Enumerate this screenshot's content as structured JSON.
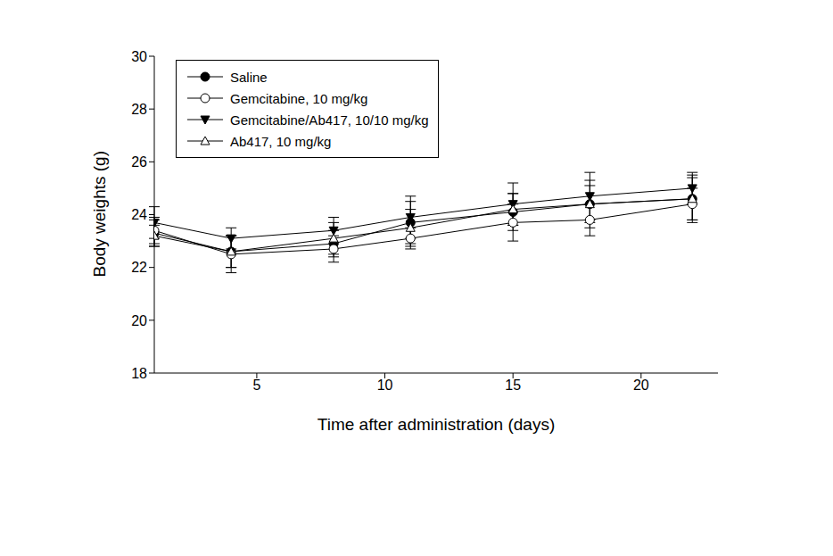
{
  "chart_data": {
    "type": "line",
    "xlabel": "Time after administration (days)",
    "ylabel": "Body weights (g)",
    "x": [
      1,
      4,
      8,
      11,
      15,
      18,
      22
    ],
    "xlim": [
      1,
      23
    ],
    "xticks": [
      5,
      10,
      15,
      20
    ],
    "ylim": [
      18,
      30
    ],
    "yticks": [
      18,
      20,
      22,
      24,
      26,
      28,
      30
    ],
    "grid": false,
    "legend": "upper left",
    "series": [
      {
        "name": "Saline",
        "color": "#000000",
        "marker": "circle",
        "values": [
          23.3,
          22.6,
          22.9,
          23.7,
          24.1,
          24.4,
          24.6
        ],
        "errors": [
          0.5,
          0.6,
          0.5,
          0.8,
          0.7,
          0.9,
          0.8
        ]
      },
      {
        "name": "Gemcitabine, 10 mg/kg",
        "color": "#000000",
        "marker": "circle-open",
        "values": [
          23.4,
          22.5,
          22.7,
          23.1,
          23.7,
          23.8,
          24.4
        ],
        "errors": [
          0.5,
          0.7,
          0.5,
          0.4,
          0.7,
          0.6,
          0.6
        ]
      },
      {
        "name": "Gemcitabine/Ab417, 10/10 mg/kg",
        "color": "#000000",
        "marker": "triangle-down",
        "values": [
          23.7,
          23.1,
          23.4,
          23.9,
          24.4,
          24.7,
          25.0
        ],
        "errors": [
          0.6,
          0.4,
          0.5,
          0.8,
          0.8,
          0.9,
          0.6
        ]
      },
      {
        "name": "Ab417, 10 mg/kg",
        "color": "#000000",
        "marker": "triangle-up-open",
        "values": [
          23.2,
          22.6,
          23.1,
          23.5,
          24.2,
          24.4,
          24.6
        ],
        "errors": [
          0.4,
          0.6,
          0.6,
          0.7,
          0.6,
          0.7,
          0.9
        ]
      }
    ]
  }
}
